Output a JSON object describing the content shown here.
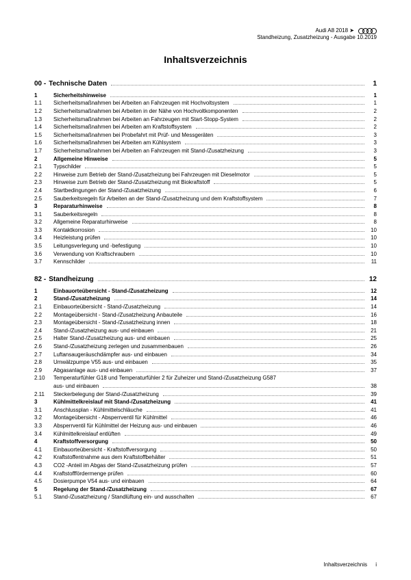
{
  "header": {
    "model": "Audi A8 2018 ➤",
    "subtitle": "Standheizung, Zusatzheizung - Ausgabe 10.2019"
  },
  "title": "Inhaltsverzeichnis",
  "sections": [
    {
      "head_num": "00 -",
      "head_label": "Technische Daten",
      "head_page": "1",
      "rows": [
        {
          "num": "1",
          "label": "Sicherheitshinweise",
          "page": "1",
          "bold": true
        },
        {
          "num": "1.1",
          "label": "Sicherheitsmaßnahmen bei Arbeiten an Fahrzeugen mit Hochvoltsystem",
          "page": "1"
        },
        {
          "num": "1.2",
          "label": "Sicherheitsmaßnahmen bei Arbeiten in der Nähe von Hochvoltkomponenten",
          "page": "2"
        },
        {
          "num": "1.3",
          "label": "Sicherheitsmaßnahmen bei Arbeiten an Fahrzeugen mit Start-Stopp-System",
          "page": "2"
        },
        {
          "num": "1.4",
          "label": "Sicherheitsmaßnahmen bei Arbeiten am Kraftstoffsystem",
          "page": "2"
        },
        {
          "num": "1.5",
          "label": "Sicherheitsmaßnahmen bei Probefahrt mit Prüf- und Messgeräten",
          "page": "3"
        },
        {
          "num": "1.6",
          "label": "Sicherheitsmaßnahmen bei Arbeiten am Kühlsystem",
          "page": "3"
        },
        {
          "num": "1.7",
          "label": "Sicherheitsmaßnahmen bei Arbeiten an Fahrzeugen mit Stand-/Zusatzheizung",
          "page": "3"
        },
        {
          "num": "2",
          "label": "Allgemeine Hinweise",
          "page": "5",
          "bold": true
        },
        {
          "num": "2.1",
          "label": "Typschilder",
          "page": "5"
        },
        {
          "num": "2.2",
          "label": "Hinweise zum Betrieb der Stand-/Zusatzheizung bei Fahrzeugen mit Dieselmotor",
          "page": "5"
        },
        {
          "num": "2.3",
          "label": "Hinweise zum Betrieb der Stand-/Zusatzheizung mit Biokraftstoff",
          "page": "5"
        },
        {
          "num": "2.4",
          "label": "Startbedingungen der Stand-/Zusatzheizung",
          "page": "6"
        },
        {
          "num": "2.5",
          "label": "Sauberkeitsregeln für Arbeiten an der Stand-/Zusatzheizung und dem Kraftstoffsystem",
          "page": "7"
        },
        {
          "num": "3",
          "label": "Reparaturhinweise",
          "page": "8",
          "bold": true
        },
        {
          "num": "3.1",
          "label": "Sauberkeitsregeln",
          "page": "8"
        },
        {
          "num": "3.2",
          "label": "Allgemeine Reparaturhinweise",
          "page": "8"
        },
        {
          "num": "3.3",
          "label": "Kontaktkorrosion",
          "page": "10"
        },
        {
          "num": "3.4",
          "label": "Heizleistung prüfen",
          "page": "10"
        },
        {
          "num": "3.5",
          "label": "Leitungsverlegung und -befestigung",
          "page": "10"
        },
        {
          "num": "3.6",
          "label": "Verwendung von Kraftschraubern",
          "page": "10"
        },
        {
          "num": "3.7",
          "label": "Kennschilder",
          "page": "11"
        }
      ]
    },
    {
      "head_num": "82 -",
      "head_label": "Standheizung",
      "head_page": "12",
      "rows": [
        {
          "num": "1",
          "label": "Einbauorteübersicht - Stand-/Zusatzheizung",
          "page": "12",
          "bold": true
        },
        {
          "num": "2",
          "label": "Stand-/Zusatzheizung",
          "page": "14",
          "bold": true
        },
        {
          "num": "2.1",
          "label": "Einbauorteübersicht - Stand-/Zusatzheizung",
          "page": "14"
        },
        {
          "num": "2.2",
          "label": "Montageübersicht - Stand-/Zusatzheizung Anbauteile",
          "page": "16"
        },
        {
          "num": "2.3",
          "label": "Montageübersicht - Stand-/Zusatzheizung innen",
          "page": "18"
        },
        {
          "num": "2.4",
          "label": "Stand-/Zusatzheizung aus- und einbauen",
          "page": "21"
        },
        {
          "num": "2.5",
          "label": "Halter Stand-/Zusatzheizung aus- und einbauen",
          "page": "25"
        },
        {
          "num": "2.6",
          "label": "Stand-/Zusatzheizung zerlegen und zusammenbauen",
          "page": "26"
        },
        {
          "num": "2.7",
          "label": "Luftansaugeräuschdämpfer aus- und einbauen",
          "page": "34"
        },
        {
          "num": "2.8",
          "label": "Umwälzpumpe V55 aus- und einbauen",
          "page": "35"
        },
        {
          "num": "2.9",
          "label": "Abgasanlage aus- und einbauen",
          "page": "37"
        },
        {
          "num": "2.10",
          "label": "Temperaturfühler G18 und Temperaturfühler 2 für Zuheizer und Stand-/Zusatzheizung G587",
          "page": "",
          "wrap": true,
          "wrap_label": "aus- und einbauen",
          "wrap_page": "38"
        },
        {
          "num": "2.11",
          "label": "Steckerbelegung der Stand-/Zusatzheizung",
          "page": "39"
        },
        {
          "num": "3",
          "label": "Kühlmittelkreislauf mit Stand-/Zusatzheizung",
          "page": "41",
          "bold": true
        },
        {
          "num": "3.1",
          "label": "Anschlussplan - Kühlmittelschläuche",
          "page": "41"
        },
        {
          "num": "3.2",
          "label": "Montageübersicht - Absperrventil für Kühlmittel",
          "page": "46"
        },
        {
          "num": "3.3",
          "label": "Absperrventil für Kühlmittel der Heizung aus- und einbauen",
          "page": "46"
        },
        {
          "num": "3.4",
          "label": "Kühlmittelkreislauf entlüften",
          "page": "49"
        },
        {
          "num": "4",
          "label": "Kraftstoffversorgung",
          "page": "50",
          "bold": true
        },
        {
          "num": "4.1",
          "label": "Einbauorteübersicht - Kraftstoffversorgung",
          "page": "50"
        },
        {
          "num": "4.2",
          "label": "Kraftstoffentnahme aus dem Kraftstoffbehälter",
          "page": "51"
        },
        {
          "num": "4.3",
          "label": "CO2 -Anteil im Abgas der Stand-/Zusatzheizung prüfen",
          "page": "57"
        },
        {
          "num": "4.4",
          "label": "Kraftstofffördermenge prüfen",
          "page": "60"
        },
        {
          "num": "4.5",
          "label": "Dosierpumpe V54 aus- und einbauen",
          "page": "64"
        },
        {
          "num": "5",
          "label": "Regelung der Stand-/Zusatzheizung",
          "page": "67",
          "bold": true
        },
        {
          "num": "5.1",
          "label": "Stand-/Zusatzheizung / Standlüftung ein- und ausschalten",
          "page": "67"
        }
      ]
    }
  ],
  "footer": {
    "label": "Inhaltsverzeichnis",
    "page": "i"
  },
  "colors": {
    "text": "#000000",
    "dots": "#888888",
    "bg": "#ffffff"
  }
}
